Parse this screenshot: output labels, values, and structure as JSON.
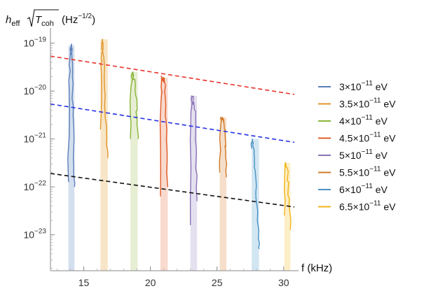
{
  "chart_data": {
    "type": "line",
    "ylabel_parts": {
      "h": "h",
      "h_sub": "eff",
      "T": "T",
      "T_sub": "coh",
      "unit_open": "(Hz",
      "unit_exp": "−1/2",
      "unit_close": ")"
    },
    "xlabel": "f (kHz)",
    "xlim": [
      12.5,
      30.8
    ],
    "ylim": [
      -23.75,
      -18.8
    ],
    "y_scale": "log",
    "x_ticks": [
      {
        "value": 15,
        "label": "15"
      },
      {
        "value": 20,
        "label": "20"
      },
      {
        "value": 25,
        "label": "25"
      },
      {
        "value": 30,
        "label": "30"
      }
    ],
    "y_ticks": [
      {
        "exp": -19,
        "base": "10",
        "sup": "−19"
      },
      {
        "exp": -20,
        "base": "10",
        "sup": "−20"
      },
      {
        "exp": -21,
        "base": "10",
        "sup": "−21"
      },
      {
        "exp": -22,
        "base": "10",
        "sup": "−22"
      },
      {
        "exp": -23,
        "base": "10",
        "sup": "−23"
      }
    ],
    "dashed_lines": [
      {
        "color": "#e8332b",
        "x": [
          12.5,
          30.8
        ],
        "log10_y": [
          -19.27,
          -20.07
        ]
      },
      {
        "color": "#2430e0",
        "x": [
          12.5,
          30.8
        ],
        "log10_y": [
          -20.27,
          -21.07
        ]
      },
      {
        "color": "#111111",
        "x": [
          12.5,
          30.8
        ],
        "log10_y": [
          -21.72,
          -22.42
        ]
      }
    ],
    "series": [
      {
        "name_base": "3×10",
        "name_exp": "−11",
        "name_unit": " eV",
        "color": "#5b7fb8",
        "band_color": "#c4d3e8",
        "band": [
          13.85,
          14.3
        ],
        "floor_log10": -23.75,
        "x": [
          13.85,
          13.9,
          13.95,
          14.0,
          14.05,
          14.1,
          14.15,
          14.2,
          14.25,
          14.3
        ],
        "log10_y": [
          -21.9,
          -19.9,
          -19.35,
          -19.1,
          -19.05,
          -19.2,
          -19.7,
          -20.5,
          -21.6,
          -22.0
        ]
      },
      {
        "name_base": "3.5×10",
        "name_exp": "−11",
        "name_unit": " eV",
        "color": "#e1962a",
        "band_color": "#f6dcb4",
        "band": [
          16.25,
          16.8
        ],
        "floor_log10": -23.75,
        "x": [
          16.25,
          16.3,
          16.35,
          16.4,
          16.45,
          16.5,
          16.6,
          16.7,
          16.8
        ],
        "log10_y": [
          -20.8,
          -19.5,
          -19.2,
          -18.92,
          -19.0,
          -19.3,
          -20.1,
          -20.9,
          -21.4
        ]
      },
      {
        "name_base": "4×10",
        "name_exp": "−11",
        "name_unit": " eV",
        "color": "#8ab53a",
        "band_color": "#dde8c4",
        "band": [
          18.5,
          19.05
        ],
        "floor_log10": -23.75,
        "x": [
          18.5,
          18.55,
          18.6,
          18.7,
          18.8,
          18.9,
          19.0,
          19.05
        ],
        "log10_y": [
          -21.0,
          -19.9,
          -19.65,
          -19.6,
          -19.75,
          -20.1,
          -20.6,
          -21.0
        ]
      },
      {
        "name_base": "4.5×10",
        "name_exp": "−11",
        "name_unit": " eV",
        "color": "#e05d2b",
        "band_color": "#f7cdbe",
        "band": [
          20.75,
          21.3
        ],
        "floor_log10": -23.75,
        "x": [
          20.75,
          20.8,
          20.85,
          20.95,
          21.05,
          21.15,
          21.2,
          21.3
        ],
        "log10_y": [
          -22.2,
          -20.2,
          -19.75,
          -19.72,
          -19.8,
          -20.3,
          -21.0,
          -22.0
        ]
      },
      {
        "name_base": "5×10",
        "name_exp": "−11",
        "name_unit": " eV",
        "color": "#8a74b8",
        "band_color": "#dcd5ea",
        "band": [
          23.0,
          23.5
        ],
        "floor_log10": -23.75,
        "x": [
          23.0,
          23.05,
          23.1,
          23.2,
          23.3,
          23.4,
          23.45,
          23.5
        ],
        "log10_y": [
          -22.8,
          -20.4,
          -20.1,
          -20.2,
          -20.3,
          -20.7,
          -21.3,
          -22.3
        ]
      },
      {
        "name_base": "5.5×10",
        "name_exp": "−11",
        "name_unit": " eV",
        "color": "#d07a2a",
        "band_color": "#f2d4b8",
        "band": [
          25.2,
          25.7
        ],
        "floor_log10": -23.75,
        "x": [
          25.2,
          25.25,
          25.3,
          25.4,
          25.5,
          25.6,
          25.65,
          25.7
        ],
        "log10_y": [
          -21.7,
          -20.8,
          -20.55,
          -20.6,
          -20.6,
          -20.9,
          -21.3,
          -21.8
        ]
      },
      {
        "name_base": "6×10",
        "name_exp": "−11",
        "name_unit": " eV",
        "color": "#4a93c4",
        "band_color": "#c3dded",
        "band": [
          27.6,
          28.15
        ],
        "floor_log10": -23.75,
        "x": [
          27.6,
          27.65,
          27.7,
          27.8,
          27.9,
          28.0,
          28.1,
          28.15
        ],
        "log10_y": [
          -21.2,
          -21.0,
          -21.15,
          -21.4,
          -21.8,
          -22.4,
          -23.1,
          -23.3
        ]
      },
      {
        "name_base": "6.5×10",
        "name_exp": "−11",
        "name_unit": " eV",
        "color": "#f2b51a",
        "band_color": "#fbe8b3",
        "band": [
          30.05,
          30.5
        ],
        "floor_log10": -23.75,
        "x": [
          30.05,
          30.1,
          30.15,
          30.25,
          30.35,
          30.45,
          30.5
        ],
        "log10_y": [
          -22.6,
          -21.6,
          -21.5,
          -21.6,
          -22.0,
          -22.5,
          -22.9
        ]
      }
    ],
    "grid": false,
    "legend_position": "right"
  }
}
